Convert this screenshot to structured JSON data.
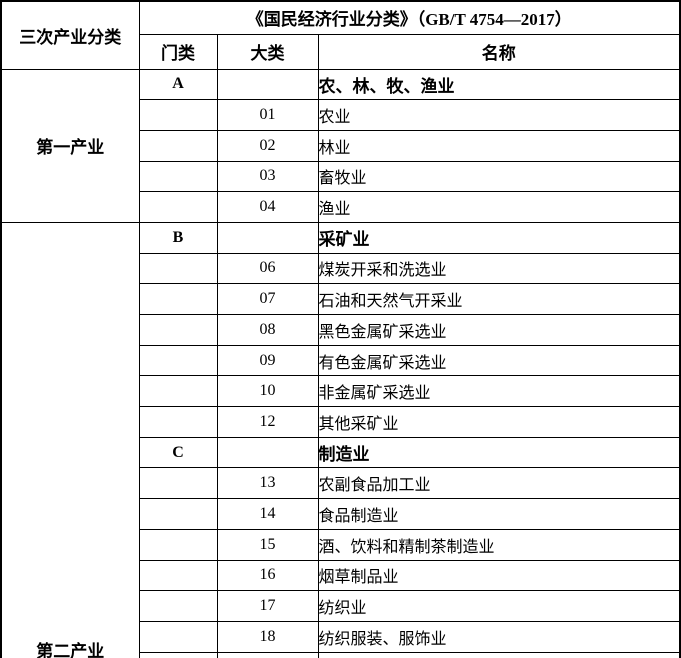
{
  "table": {
    "corner_header": "三次产业分类",
    "title": "《国民经济行业分类》（GB/T 4754—2017）",
    "sub_headers": {
      "menlei": "门类",
      "dalei": "大类",
      "mingcheng": "名称"
    },
    "sections": [
      {
        "industry": "第一产业",
        "rows": [
          {
            "menlei": "A",
            "dalei": "",
            "name": "农、林、牧、渔业"
          },
          {
            "menlei": "",
            "dalei": "01",
            "name": "农业"
          },
          {
            "menlei": "",
            "dalei": "02",
            "name": "林业"
          },
          {
            "menlei": "",
            "dalei": "03",
            "name": "畜牧业"
          },
          {
            "menlei": "",
            "dalei": "04",
            "name": "渔业"
          }
        ]
      },
      {
        "industry": "第二产业",
        "rows": [
          {
            "menlei": "B",
            "dalei": "",
            "name": "采矿业"
          },
          {
            "menlei": "",
            "dalei": "06",
            "name": "煤炭开采和洗选业"
          },
          {
            "menlei": "",
            "dalei": "07",
            "name": "石油和天然气开采业"
          },
          {
            "menlei": "",
            "dalei": "08",
            "name": "黑色金属矿采选业"
          },
          {
            "menlei": "",
            "dalei": "09",
            "name": "有色金属矿采选业"
          },
          {
            "menlei": "",
            "dalei": "10",
            "name": "非金属矿采选业"
          },
          {
            "menlei": "",
            "dalei": "12",
            "name": "其他采矿业"
          },
          {
            "menlei": "C",
            "dalei": "",
            "name": "制造业"
          },
          {
            "menlei": "",
            "dalei": "13",
            "name": "农副食品加工业"
          },
          {
            "menlei": "",
            "dalei": "14",
            "name": "食品制造业"
          },
          {
            "menlei": "",
            "dalei": "15",
            "name": "酒、饮料和精制茶制造业"
          },
          {
            "menlei": "",
            "dalei": "16",
            "name": "烟草制品业"
          },
          {
            "menlei": "",
            "dalei": "17",
            "name": "纺织业"
          },
          {
            "menlei": "",
            "dalei": "18",
            "name": "纺织服装、服饰业"
          },
          {
            "menlei": "",
            "dalei": "",
            "name": ""
          }
        ]
      }
    ]
  },
  "colors": {
    "border": "#000000",
    "text": "#000000",
    "background": "#ffffff"
  }
}
